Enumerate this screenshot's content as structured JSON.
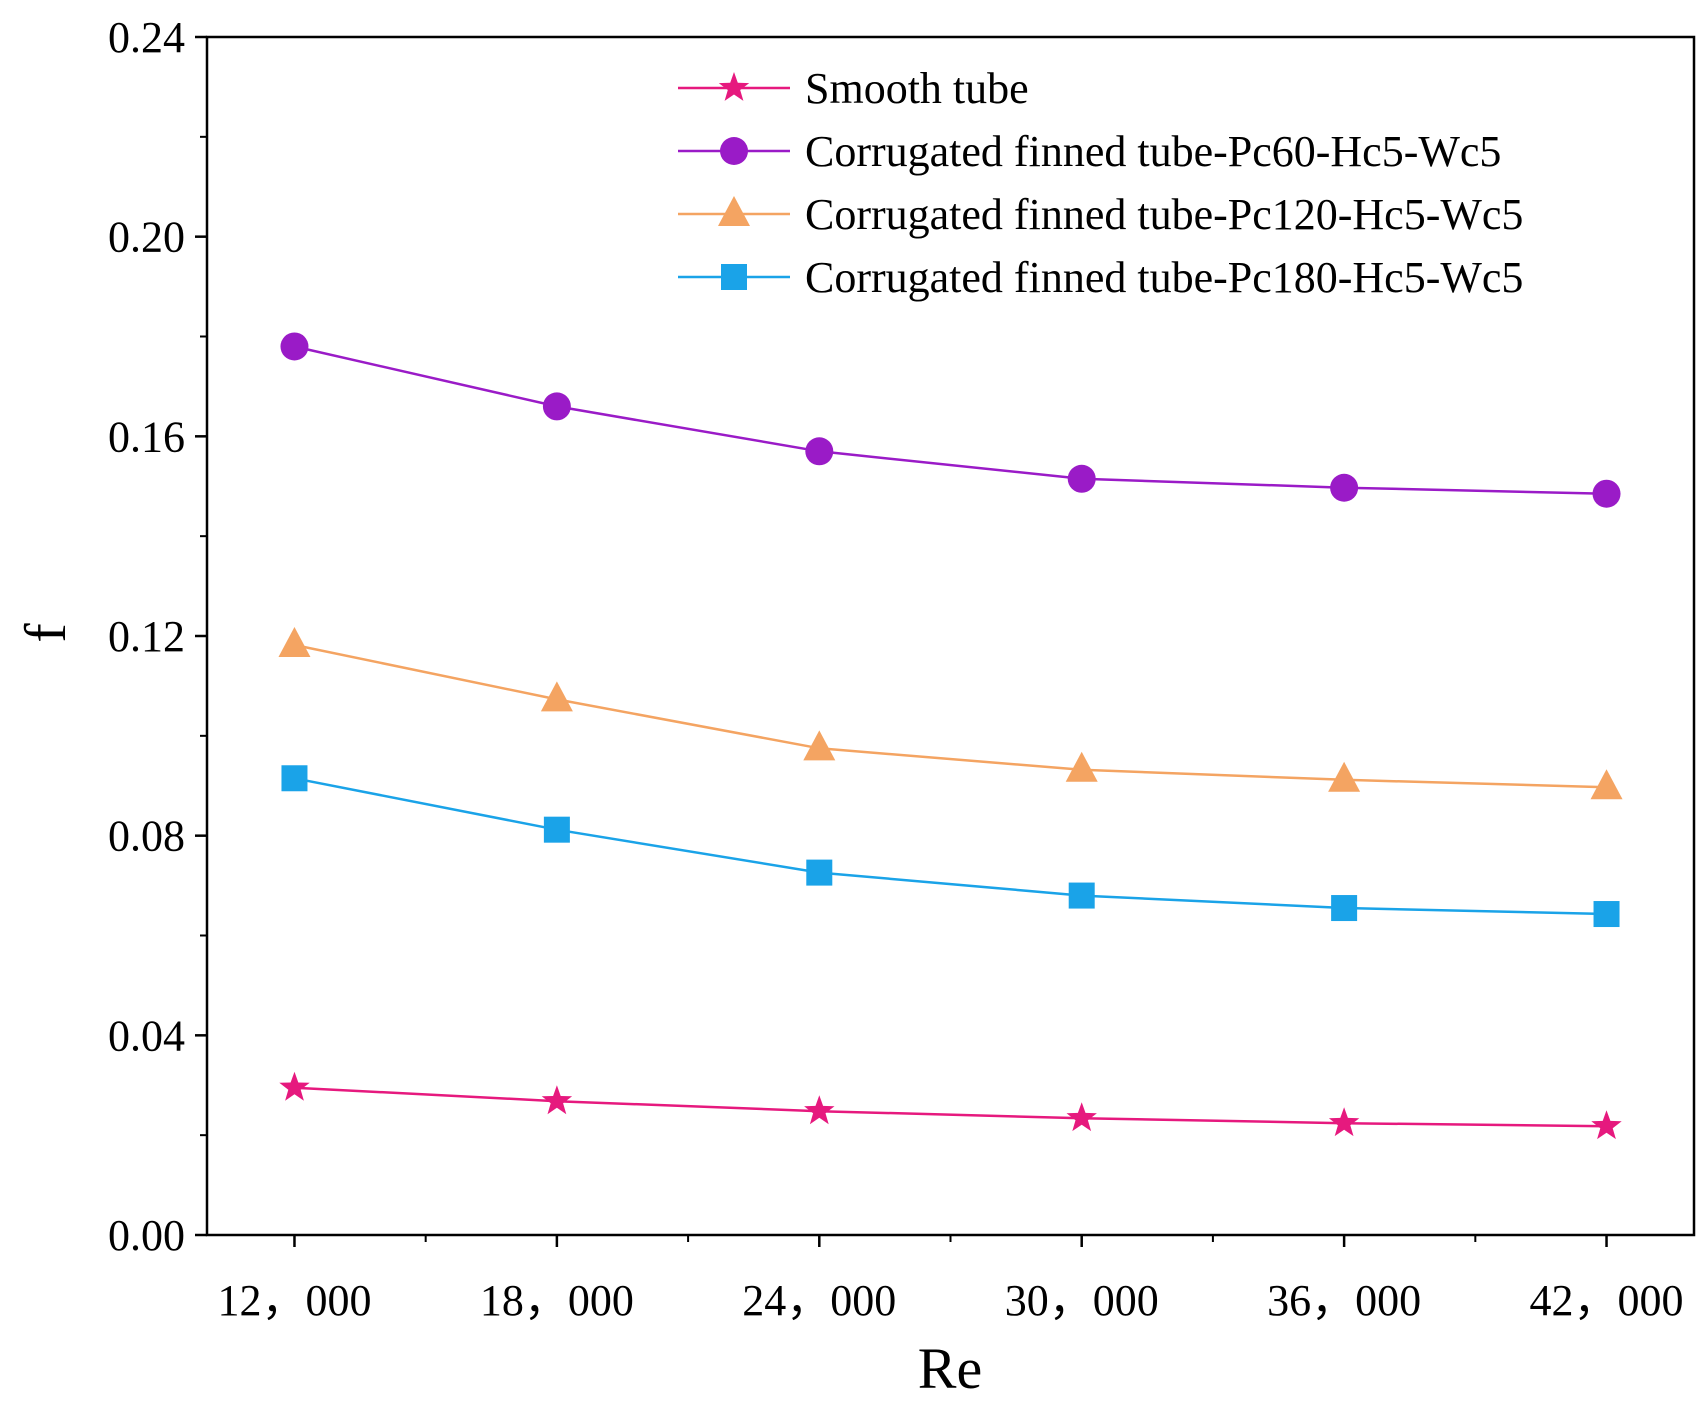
{
  "chart_data": {
    "type": "line",
    "xlabel": "Re",
    "ylabel": "f",
    "x": [
      12000,
      18000,
      24000,
      30000,
      36000,
      42000
    ],
    "xlim": [
      10000,
      44000
    ],
    "ylim": [
      0,
      0.24
    ],
    "x_tick_labels": [
      "12，000",
      "18，000",
      "24，000",
      "30，000",
      "36，000",
      "42，000"
    ],
    "y_ticks": [
      0,
      0.04,
      0.08,
      0.12,
      0.16,
      0.2,
      0.24
    ],
    "y_tick_labels": [
      "0.00",
      "0.04",
      "0.08",
      "0.12",
      "0.16",
      "0.20",
      "0.24"
    ],
    "grid": false,
    "legend_position": "top-right",
    "series": [
      {
        "name": "Smooth tube",
        "marker": "star",
        "color": "#E6197E",
        "values": [
          0.0295,
          0.0268,
          0.0248,
          0.0234,
          0.0224,
          0.0218
        ]
      },
      {
        "name": "Corrugated finned tube-Pc60-Hc5-Wc5",
        "marker": "circle",
        "color": "#9A1BC7",
        "values": [
          0.178,
          0.166,
          0.157,
          0.1515,
          0.1497,
          0.1485
        ]
      },
      {
        "name": "Corrugated finned tube-Pc120-Hc5-Wc5",
        "marker": "triangle",
        "color": "#F4A462",
        "values": [
          0.1182,
          0.1073,
          0.0975,
          0.0932,
          0.0912,
          0.0897
        ]
      },
      {
        "name": "Corrugated finned tube-Pc180-Hc5-Wc5",
        "marker": "square",
        "color": "#1AA3E8",
        "values": [
          0.0915,
          0.0812,
          0.0726,
          0.068,
          0.0655,
          0.0643
        ]
      }
    ]
  }
}
